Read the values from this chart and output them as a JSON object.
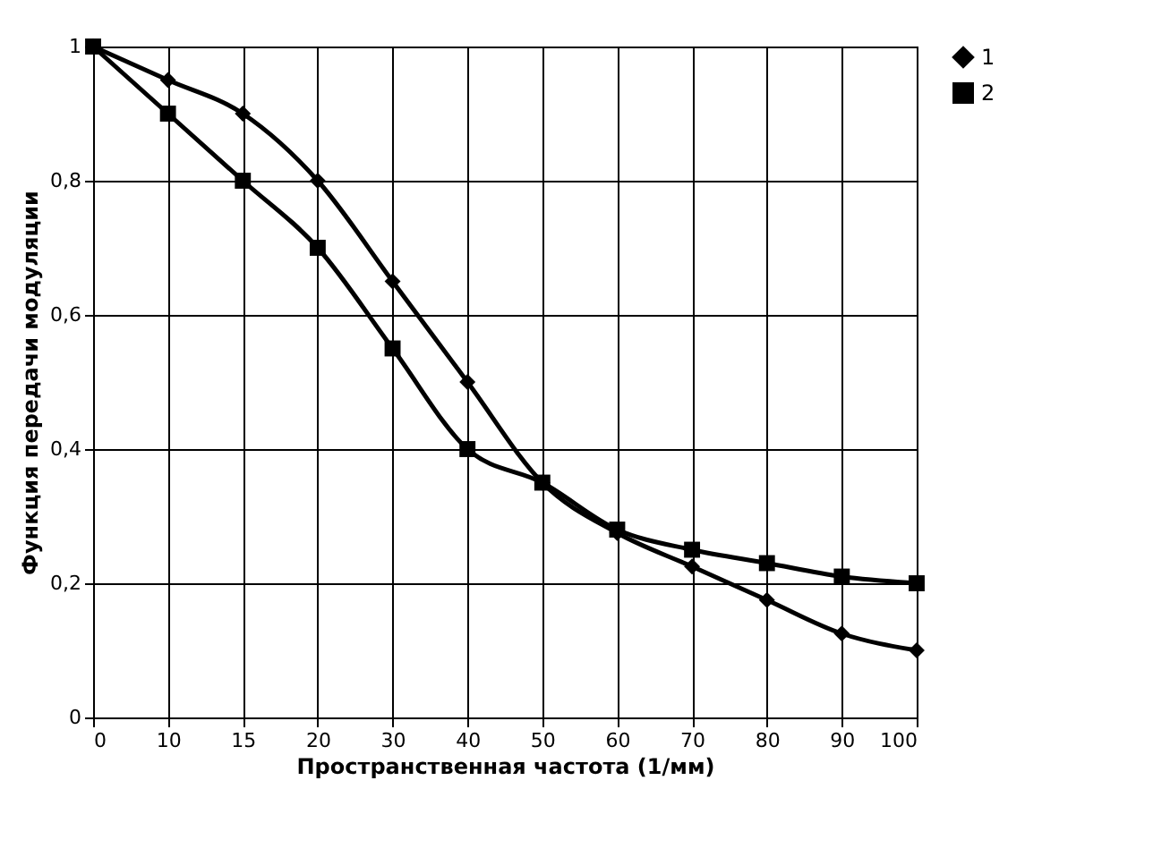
{
  "chart_data": {
    "type": "line",
    "xlabel": "Пространственная частота (1/мм)",
    "ylabel": "Функция передачи модуляции",
    "categories": [
      "0",
      "10",
      "15",
      "20",
      "30",
      "40",
      "50",
      "60",
      "70",
      "80",
      "90",
      "100"
    ],
    "series": [
      {
        "name": "1",
        "color": "#000000",
        "marker": "diamond",
        "values": [
          1,
          0.95,
          0.9,
          0.8,
          0.65,
          0.5,
          0.35,
          0.275,
          0.225,
          0.175,
          0.125,
          0.1
        ]
      },
      {
        "name": "2",
        "color": "#000000",
        "marker": "square",
        "values": [
          1,
          0.9,
          0.8,
          0.7,
          0.55,
          0.4,
          0.35,
          0.28,
          0.25,
          0.23,
          0.21,
          0.2
        ]
      }
    ],
    "ylim": [
      0,
      1
    ],
    "yticks": [
      0,
      {
        "value": 0.2,
        "label": "0,2"
      },
      {
        "value": 0.4,
        "label": "0,4"
      },
      {
        "value": 0.6,
        "label": "0,6"
      },
      {
        "value": 0.8,
        "label": "0,8"
      },
      1
    ],
    "grid": true,
    "legend": "right",
    "line_style": "solid"
  }
}
